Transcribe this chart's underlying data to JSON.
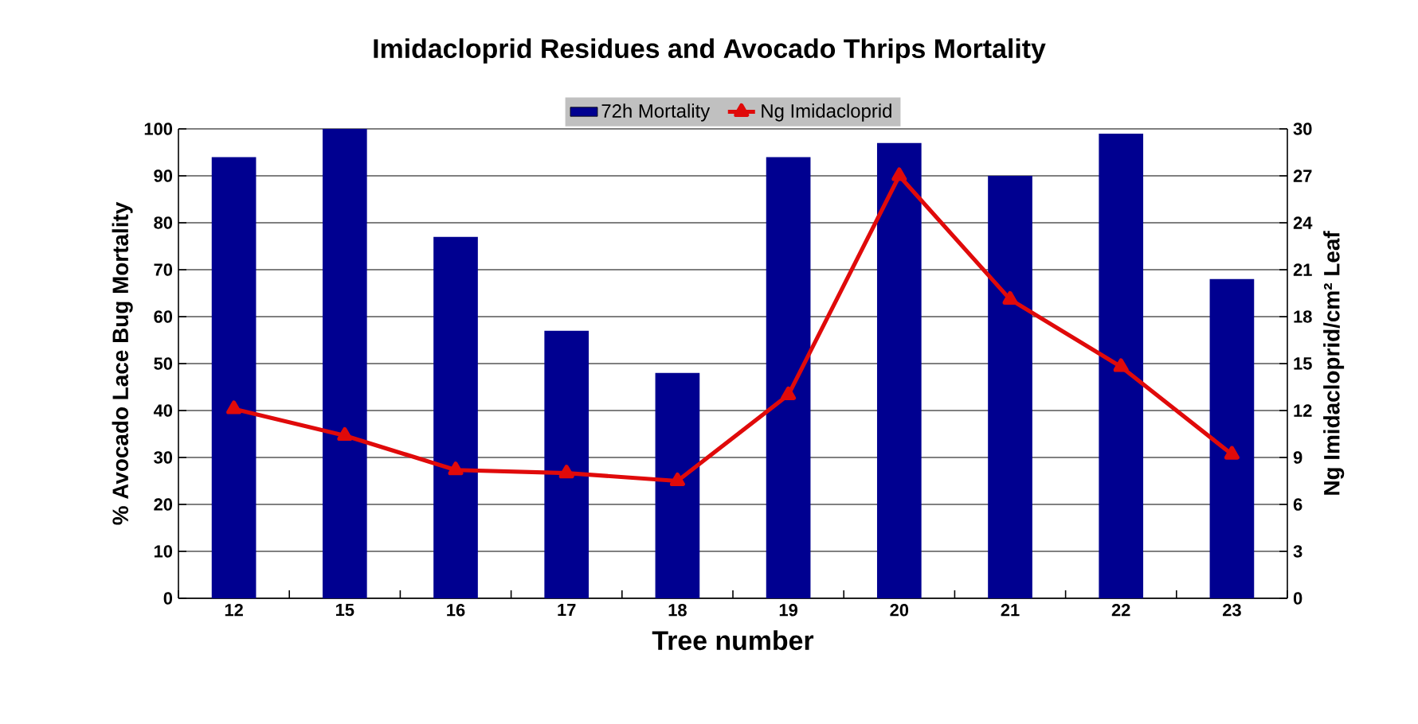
{
  "chart_data": {
    "type": "bar",
    "title": "Imidacloprid Residues and Avocado Thrips Mortality",
    "xlabel": "Tree number",
    "ylabel": "% Avocado Lace Bug Mortality",
    "y2label": "Ng Imidacloprid/cm² Leaf",
    "categories": [
      "12",
      "15",
      "16",
      "17",
      "18",
      "19",
      "20",
      "21",
      "22",
      "23"
    ],
    "series": [
      {
        "name": "72h Mortality",
        "color": "#000090",
        "values": [
          94,
          100,
          77,
          57,
          48,
          94,
          97,
          90,
          99,
          68
        ]
      },
      {
        "name": "Ng Imidacloprid",
        "type": "line",
        "axis": "y2",
        "color": "#e00a0a",
        "marker": "triangle",
        "values": [
          12.1,
          10.4,
          8.2,
          8.0,
          7.5,
          13.0,
          27.0,
          19.1,
          14.8,
          9.2
        ]
      }
    ],
    "ylim": [
      0,
      100
    ],
    "yticks": [
      0,
      10,
      20,
      30,
      40,
      50,
      60,
      70,
      80,
      90,
      100
    ],
    "y2lim": [
      0,
      30
    ],
    "y2ticks": [
      0,
      3,
      6,
      9,
      12,
      15,
      18,
      21,
      24,
      27,
      30
    ],
    "grid": "y",
    "legend": "top"
  }
}
